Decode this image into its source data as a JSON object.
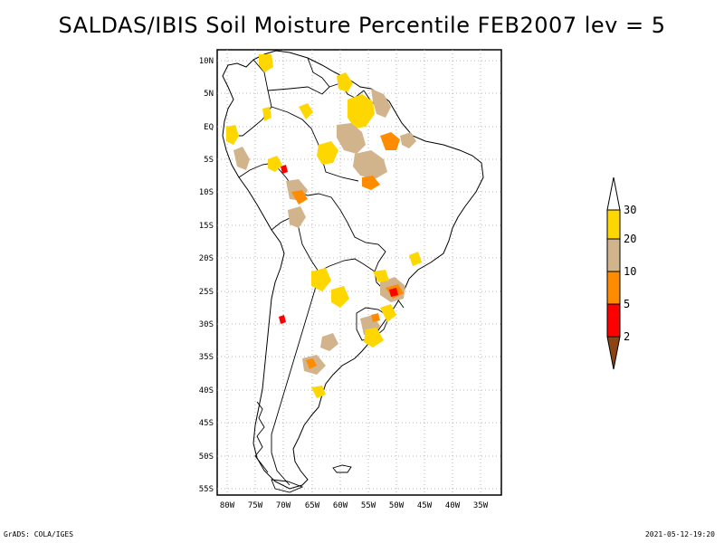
{
  "title": "SALDAS/IBIS Soil Moisture Percentile FEB2007 lev = 5",
  "footer": {
    "left": "GrADS: COLA/IGES",
    "right": "2021-05-12-19:20"
  },
  "axes": {
    "lat_labels": [
      "10N",
      "5N",
      "EQ",
      "5S",
      "10S",
      "15S",
      "20S",
      "25S",
      "30S",
      "35S",
      "40S",
      "45S",
      "50S",
      "55S"
    ],
    "lon_labels": [
      "80W",
      "75W",
      "70W",
      "65W",
      "60W",
      "55W",
      "50W",
      "45W",
      "40W",
      "35W"
    ]
  },
  "colorbar": {
    "labels": [
      "30",
      "20",
      "10",
      "5",
      "2"
    ],
    "colors": {
      "above30": "#ffffff",
      "c20_30": "#ffd700",
      "c10_20": "#d2b48c",
      "c5_10": "#ff8c00",
      "c2_5": "#ff0000",
      "below2": "#8b4513"
    }
  }
}
